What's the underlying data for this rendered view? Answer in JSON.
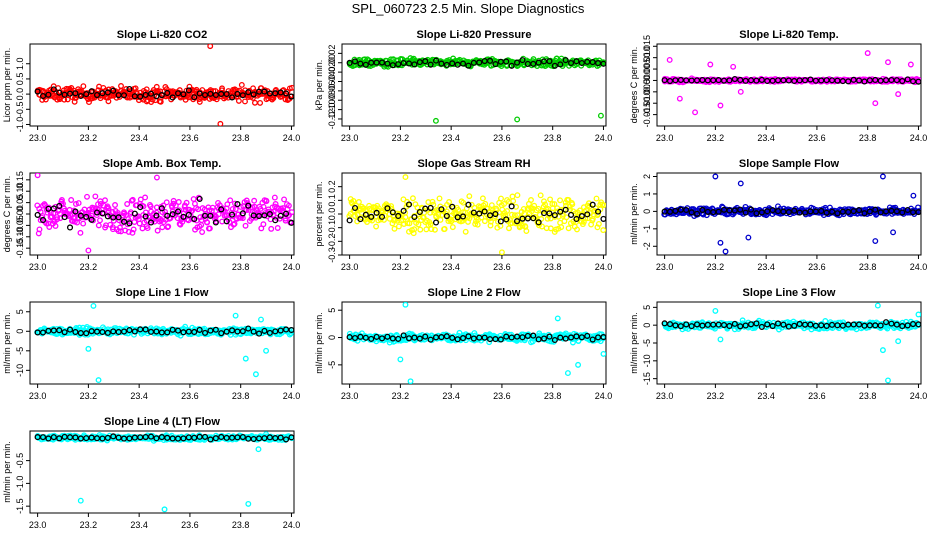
{
  "title": "SPL_060723  2.5 Min. Slope Diagnostics",
  "colors": {
    "frame": "#000000",
    "overlay": "#000000"
  },
  "chart_data": [
    {
      "type": "scatter",
      "title": "Slope Li-820 CO2",
      "xlabel": "",
      "ylabel": "Licor ppm per min.",
      "color": "#ff0000",
      "xlim": [
        22.97,
        24.01
      ],
      "ylim": [
        -1.05,
        1.65
      ],
      "xticks": [
        "23.0",
        "23.2",
        "23.4",
        "23.6",
        "23.8",
        "24.0"
      ],
      "yticks": [
        -1.0,
        -0.5,
        0.0,
        0.5,
        1.0
      ],
      "ytick_labels": [
        "-1.0",
        "-0.5",
        "0.0",
        "0.5",
        "1.0"
      ],
      "baseline": 0.0,
      "spread": 0.28,
      "outliers": [
        [
          23.68,
          1.58
        ],
        [
          23.72,
          -0.98
        ]
      ]
    },
    {
      "type": "scatter",
      "title": "Slope Li-820 Pressure",
      "xlabel": "",
      "ylabel": "kPa per min.",
      "color": "#00cc00",
      "xlim": [
        22.97,
        24.01
      ],
      "ylim": [
        -0.135,
        0.04
      ],
      "xticks": [
        "23.0",
        "23.2",
        "23.4",
        "23.6",
        "23.8",
        "24.0"
      ],
      "yticks": [
        -0.12,
        -0.1,
        -0.08,
        -0.06,
        -0.04,
        -0.02,
        0.0,
        0.02
      ],
      "ytick_labels": [
        "-0.12",
        "-0.10",
        "-0.08",
        "-0.06",
        "-0.04",
        "-0.02",
        "0.00",
        "0.02"
      ],
      "baseline": 0.0,
      "spread": 0.01,
      "outliers": [
        [
          23.34,
          -0.124
        ],
        [
          23.66,
          -0.121
        ],
        [
          23.99,
          -0.113
        ]
      ]
    },
    {
      "type": "scatter",
      "title": "Slope Li-820 Temp.",
      "xlabel": "",
      "ylabel": "degrees C per min.",
      "color": "#ff00ff",
      "xlim": [
        22.97,
        24.01
      ],
      "ylim": [
        -0.02,
        0.016
      ],
      "xticks": [
        "23.0",
        "23.2",
        "23.4",
        "23.6",
        "23.8",
        "24.0"
      ],
      "yticks": [
        -0.015,
        -0.01,
        -0.005,
        0.0,
        0.005,
        0.01,
        0.015
      ],
      "ytick_labels": [
        "-0.015",
        "-0.010",
        "-0.005",
        "0.000",
        "0.005",
        "0.010",
        "0.015"
      ],
      "baseline": 0.0,
      "spread": 0.0008,
      "outliers": [
        [
          23.02,
          0.009
        ],
        [
          23.06,
          -0.008
        ],
        [
          23.12,
          -0.014
        ],
        [
          23.18,
          0.007
        ],
        [
          23.22,
          -0.011
        ],
        [
          23.27,
          0.006
        ],
        [
          23.3,
          -0.005
        ],
        [
          23.8,
          0.012
        ],
        [
          23.83,
          -0.01
        ],
        [
          23.88,
          0.008
        ],
        [
          23.92,
          -0.006
        ],
        [
          23.97,
          0.007
        ]
      ]
    },
    {
      "type": "scatter",
      "title": "Slope Amb. Box Temp.",
      "xlabel": "",
      "ylabel": "degrees C per min.",
      "color": "#ff00ff",
      "xlim": [
        22.97,
        24.01
      ],
      "ylim": [
        -0.18,
        0.18
      ],
      "xticks": [
        "23.0",
        "23.2",
        "23.4",
        "23.6",
        "23.8",
        "24.0"
      ],
      "yticks": [
        -0.15,
        -0.1,
        -0.05,
        0.0,
        0.05,
        0.1,
        0.15
      ],
      "ytick_labels": [
        "-0.15",
        "-0.10",
        "-0.05",
        "0.00",
        "0.05",
        "0.10",
        "0.15"
      ],
      "baseline": 0.0,
      "spread": 0.09,
      "outliers": [
        [
          23.0,
          0.17
        ],
        [
          23.2,
          -0.16
        ],
        [
          23.47,
          0.16
        ]
      ]
    },
    {
      "type": "scatter",
      "title": "Slope Gas Stream RH",
      "xlabel": "",
      "ylabel": "percent per min.",
      "color": "#ffff00",
      "xlim": [
        22.97,
        24.01
      ],
      "ylim": [
        -0.3,
        0.3
      ],
      "xticks": [
        "23.0",
        "23.2",
        "23.4",
        "23.6",
        "23.8",
        "24.0"
      ],
      "yticks": [
        -0.3,
        -0.2,
        -0.1,
        0.0,
        0.1,
        0.2
      ],
      "ytick_labels": [
        "-0.3",
        "-0.2",
        "-0.1",
        "0.0",
        "0.1",
        "0.2"
      ],
      "baseline": 0.0,
      "spread": 0.16,
      "outliers": [
        [
          23.22,
          0.27
        ],
        [
          23.6,
          -0.28
        ]
      ]
    },
    {
      "type": "scatter",
      "title": "Slope Sample Flow",
      "xlabel": "",
      "ylabel": "ml/min per min.",
      "color": "#0000cc",
      "xlim": [
        22.97,
        24.01
      ],
      "ylim": [
        -2.5,
        2.2
      ],
      "xticks": [
        "23.0",
        "23.2",
        "23.4",
        "23.6",
        "23.8",
        "24.0"
      ],
      "yticks": [
        -2.0,
        -1.0,
        0.0,
        1.0,
        2.0
      ],
      "ytick_labels": [
        "-2",
        "-1",
        "0",
        "1",
        "2"
      ],
      "baseline": 0.0,
      "spread": 0.25,
      "outliers": [
        [
          23.2,
          2.0
        ],
        [
          23.22,
          -1.8
        ],
        [
          23.24,
          -2.3
        ],
        [
          23.3,
          1.6
        ],
        [
          23.33,
          -1.5
        ],
        [
          23.83,
          -1.7
        ],
        [
          23.86,
          2.0
        ],
        [
          23.9,
          -1.2
        ],
        [
          23.98,
          0.9
        ]
      ]
    },
    {
      "type": "scatter",
      "title": "Slope Line 1 Flow",
      "xlabel": "",
      "ylabel": "ml/min per min.",
      "color": "#00ffff",
      "xlim": [
        22.97,
        24.01
      ],
      "ylim": [
        -13.5,
        7.5
      ],
      "xticks": [
        "23.0",
        "23.2",
        "23.4",
        "23.6",
        "23.8",
        "24.0"
      ],
      "yticks": [
        -10.0,
        -5.0,
        0.0,
        5.0
      ],
      "ytick_labels": [
        "-10",
        "-5",
        "0",
        "5"
      ],
      "baseline": 0.0,
      "spread": 1.0,
      "outliers": [
        [
          23.2,
          -4.5
        ],
        [
          23.22,
          6.5
        ],
        [
          23.24,
          -12.5
        ],
        [
          23.78,
          4.0
        ],
        [
          23.82,
          -7.0
        ],
        [
          23.86,
          -11.0
        ],
        [
          23.88,
          3.0
        ],
        [
          23.9,
          -5.0
        ]
      ]
    },
    {
      "type": "scatter",
      "title": "Slope Line 2 Flow",
      "xlabel": "",
      "ylabel": "ml/min per min.",
      "color": "#00ffff",
      "xlim": [
        22.97,
        24.01
      ],
      "ylim": [
        -8.5,
        6.5
      ],
      "xticks": [
        "23.0",
        "23.2",
        "23.4",
        "23.6",
        "23.8",
        "24.0"
      ],
      "yticks": [
        -5.0,
        0.0,
        5.0
      ],
      "ytick_labels": [
        "-5",
        "0",
        "5"
      ],
      "baseline": 0.0,
      "spread": 0.9,
      "outliers": [
        [
          23.2,
          -4.0
        ],
        [
          23.22,
          6.0
        ],
        [
          23.24,
          -8.0
        ],
        [
          23.82,
          3.5
        ],
        [
          23.86,
          -6.5
        ],
        [
          23.9,
          -5.0
        ],
        [
          24.0,
          -3.0
        ]
      ]
    },
    {
      "type": "scatter",
      "title": "Slope Line 3 Flow",
      "xlabel": "",
      "ylabel": "ml/min per min.",
      "color": "#00ffff",
      "xlim": [
        22.97,
        24.01
      ],
      "ylim": [
        -16.5,
        6.5
      ],
      "xticks": [
        "23.0",
        "23.2",
        "23.4",
        "23.6",
        "23.8",
        "24.0"
      ],
      "yticks": [
        -15.0,
        -10.0,
        -5.0,
        0.0,
        5.0
      ],
      "ytick_labels": [
        "-15",
        "-10",
        "-5",
        "0",
        "5"
      ],
      "baseline": 0.0,
      "spread": 1.2,
      "outliers": [
        [
          23.2,
          4.0
        ],
        [
          23.22,
          -4.0
        ],
        [
          23.84,
          5.5
        ],
        [
          23.86,
          -7.0
        ],
        [
          23.88,
          -15.5
        ],
        [
          23.92,
          -4.5
        ],
        [
          24.0,
          3.0
        ]
      ]
    },
    {
      "type": "scatter",
      "title": "Slope Line 4 (LT) Flow",
      "xlabel": "",
      "ylabel": "ml/min per min.",
      "color": "#00ffff",
      "xlim": [
        22.97,
        24.01
      ],
      "ylim": [
        -1.65,
        0.15
      ],
      "xticks": [
        "23.0",
        "23.2",
        "23.4",
        "23.6",
        "23.8",
        "24.0"
      ],
      "yticks": [
        -1.5,
        -1.0,
        -0.5
      ],
      "ytick_labels": [
        "-1.5",
        "-1.0",
        "-0.5"
      ],
      "baseline": 0.0,
      "spread": 0.06,
      "outliers": [
        [
          23.17,
          -1.38
        ],
        [
          23.5,
          -1.57
        ],
        [
          23.83,
          -1.45
        ],
        [
          23.87,
          -0.25
        ],
        [
          23.9,
          0.08
        ]
      ]
    }
  ]
}
